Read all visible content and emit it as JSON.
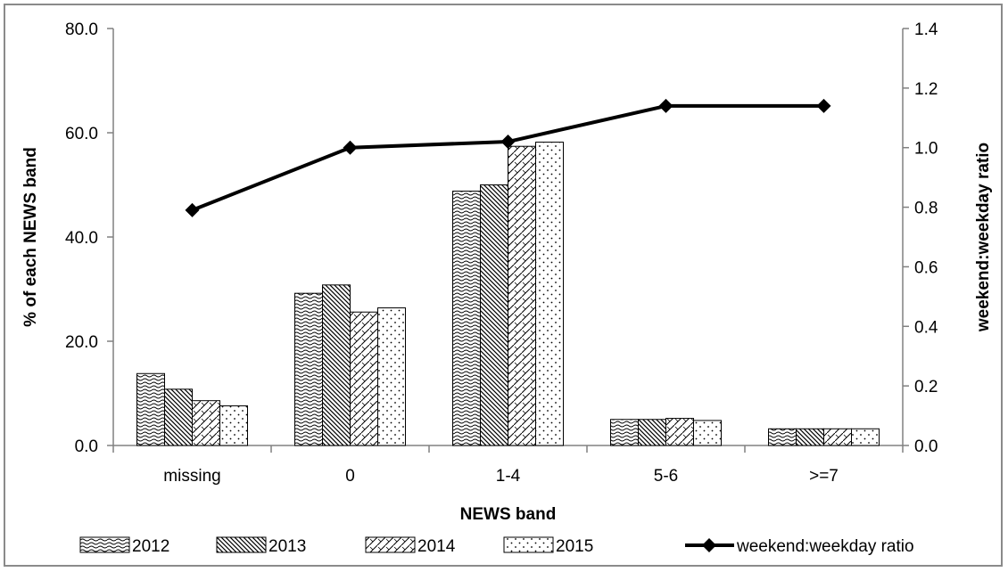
{
  "chart_data": {
    "type": "bar",
    "categories": [
      "missing",
      "0",
      "1-4",
      "5-6",
      ">=7"
    ],
    "series": [
      {
        "name": "2012",
        "values": [
          13.8,
          29.2,
          48.8,
          5.0,
          3.2
        ],
        "pattern": "wave"
      },
      {
        "name": "2013",
        "values": [
          10.8,
          30.8,
          50.0,
          5.0,
          3.2
        ],
        "pattern": "diag-down"
      },
      {
        "name": "2014",
        "values": [
          8.6,
          25.6,
          57.4,
          5.2,
          3.2
        ],
        "pattern": "diag-up"
      },
      {
        "name": "2015",
        "values": [
          7.6,
          26.4,
          58.2,
          4.8,
          3.2
        ],
        "pattern": "dots"
      }
    ],
    "line_series": {
      "name": "weekend:weekday ratio",
      "values": [
        0.79,
        1.0,
        1.02,
        1.14,
        1.14
      ],
      "axis": "right"
    },
    "xlabel": "NEWS band",
    "ylabel": "% of each NEWS band",
    "y2label": "weekend:weekday ratio",
    "ylim": [
      0,
      80
    ],
    "yticks": [
      "0.0",
      "20.0",
      "40.0",
      "60.0",
      "80.0"
    ],
    "y2lim": [
      0,
      1.4
    ],
    "y2ticks": [
      "0.0",
      "0.2",
      "0.4",
      "0.6",
      "0.8",
      "1.0",
      "1.2",
      "1.4"
    ],
    "grid": false,
    "legend_position": "bottom"
  }
}
